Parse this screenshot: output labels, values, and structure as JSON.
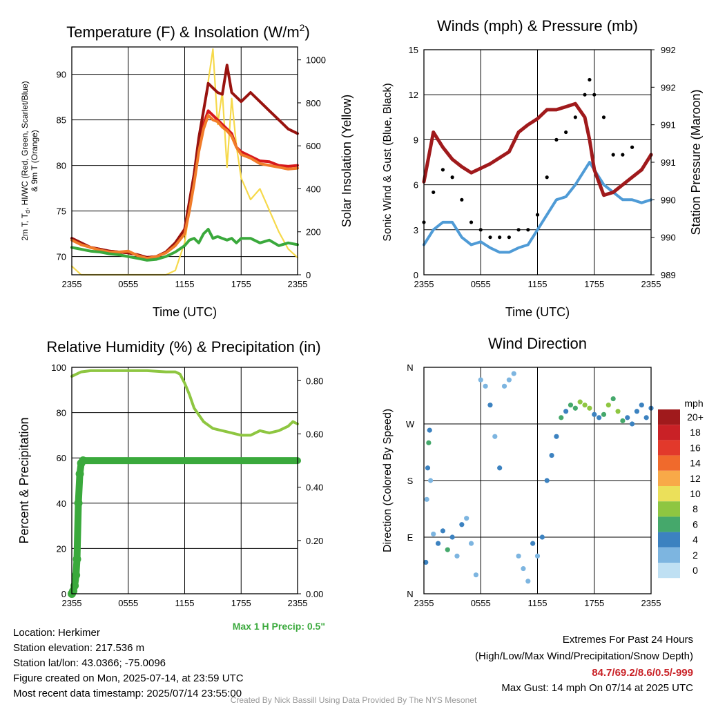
{
  "chart_data": [
    {
      "type": "line",
      "title": "Temperature (F) & Insolation (W/m²)",
      "title_main": "Temperature (F) & Insolation (W/m",
      "title_sup": "2",
      "title_end": ")",
      "xlabel": "Time (UTC)",
      "ylabel_left_1": "2m T, T",
      "ylabel_left_sub": "d",
      "ylabel_left_2": ", HI/WC (Red, Green, Scarlet/Blue)",
      "ylabel_left_line2": "& 9m T (Orange)",
      "ylabel_right": "Solar Insolation (Yellow)",
      "x_ticks": [
        "2355",
        "0555",
        "1155",
        "1755",
        "2355"
      ],
      "ylim_left": [
        68,
        93
      ],
      "y_ticks_left": [
        70,
        75,
        80,
        85,
        90
      ],
      "ylim_right": [
        0,
        1060
      ],
      "y_ticks_right": [
        0,
        200,
        400,
        600,
        800,
        1000
      ],
      "x_hours": [
        0,
        1,
        2,
        3,
        4,
        5,
        6,
        7,
        8,
        9,
        10,
        11,
        12,
        12.5,
        13,
        13.5,
        14,
        14.5,
        15,
        15.5,
        16,
        16.5,
        17,
        17.5,
        18,
        19,
        20,
        21,
        22,
        23,
        24
      ],
      "series": [
        {
          "name": "2m T",
          "color": "#d7191c",
          "values": [
            72,
            71.5,
            71,
            70.8,
            70.6,
            70.5,
            70.4,
            70.2,
            69.9,
            70,
            70.5,
            71.5,
            73,
            76,
            79,
            82,
            84.5,
            86,
            85.5,
            85,
            84.5,
            84,
            83.5,
            82,
            81.5,
            81,
            80.5,
            80.4,
            80,
            79.9,
            80
          ]
        },
        {
          "name": "Heat Index",
          "color": "#99130f",
          "values": [
            72,
            71.5,
            71,
            70.8,
            70.6,
            70.5,
            70.4,
            70.2,
            69.9,
            70,
            70.5,
            71.5,
            73,
            76,
            79,
            83,
            86,
            89,
            88.5,
            88,
            87.8,
            91,
            88,
            87.5,
            87,
            88,
            87,
            86,
            85,
            84,
            83.5
          ]
        },
        {
          "name": "9m T",
          "color": "#f17c2a",
          "values": [
            71.8,
            71.3,
            71,
            70.7,
            70.5,
            70.5,
            70.6,
            70.1,
            69.8,
            70,
            70.4,
            71.2,
            72.5,
            75,
            78,
            81.5,
            84,
            85.5,
            85,
            84.8,
            84.2,
            83.8,
            83.2,
            82,
            81.2,
            80.8,
            80.2,
            80,
            79.8,
            79.6,
            79.7
          ]
        },
        {
          "name": "Td",
          "color": "#3aa93c",
          "values": [
            71,
            70.8,
            70.6,
            70.5,
            70.3,
            70.2,
            70,
            69.8,
            69.6,
            69.7,
            70,
            70.5,
            71.2,
            71.8,
            72,
            71.5,
            72.5,
            73,
            72,
            72.2,
            72,
            71.8,
            72,
            71.5,
            72,
            72,
            71.5,
            71.8,
            71.2,
            71.5,
            71.3
          ]
        },
        {
          "name": "Solar",
          "color": "#f6d94b",
          "axis": "right",
          "values": [
            40,
            0,
            0,
            0,
            0,
            0,
            0,
            0,
            0,
            0,
            0,
            20,
            150,
            300,
            450,
            600,
            750,
            900,
            1050,
            700,
            850,
            500,
            820,
            600,
            450,
            350,
            400,
            300,
            200,
            120,
            80
          ]
        }
      ]
    },
    {
      "type": "line",
      "title": "Winds (mph) & Pressure (mb)",
      "xlabel": "Time (UTC)",
      "ylabel_left": "Sonic Wind & Gust (Blue, Black)",
      "ylabel_right": "Station Pressure (Maroon)",
      "x_ticks": [
        "2355",
        "0555",
        "1155",
        "1755",
        "2355"
      ],
      "ylim_left": [
        0,
        15
      ],
      "y_ticks_left": [
        0,
        3,
        6,
        9,
        12,
        15
      ],
      "y_ticks_right": [
        "989",
        "990",
        "990",
        "991",
        "991",
        "992",
        "992"
      ],
      "x_hours": [
        0,
        1,
        2,
        3,
        4,
        5,
        6,
        7,
        8,
        9,
        10,
        11,
        12,
        13,
        14,
        15,
        16,
        17,
        17.5,
        18,
        19,
        20,
        21,
        22,
        23,
        24
      ],
      "wind": [
        2,
        3,
        3.5,
        3.5,
        2.5,
        2,
        2.2,
        1.8,
        1.5,
        1.5,
        1.8,
        2,
        3,
        4,
        5,
        5.2,
        6,
        7,
        7.5,
        7,
        6,
        5.5,
        5,
        5,
        4.8,
        5
      ],
      "gust": [
        3.5,
        5.5,
        7,
        6.5,
        5,
        3.5,
        3,
        2.5,
        2.5,
        2.5,
        3,
        3,
        4,
        6.5,
        9,
        9.5,
        10.5,
        12,
        13,
        12,
        10.5,
        8,
        8,
        8.5,
        7,
        8
      ],
      "pressure": [
        6.2,
        9.5,
        8.5,
        7.7,
        7.2,
        6.8,
        7.1,
        7.4,
        7.8,
        8.2,
        9.5,
        10,
        10.4,
        11,
        11,
        11.2,
        11.4,
        10.5,
        9,
        7,
        5.3,
        5.5,
        6,
        6.5,
        7,
        8
      ]
    },
    {
      "type": "line",
      "title": "Relative Humidity (%) & Precipitation (in)",
      "ylabel": "Percent & Precipitation",
      "x_ticks": [
        "2355",
        "0555",
        "1155",
        "1755",
        "2355"
      ],
      "ylim_left": [
        0,
        100
      ],
      "y_ticks_left": [
        0,
        20,
        40,
        60,
        80,
        100
      ],
      "ylim_right": [
        0,
        0.85
      ],
      "y_ticks_right": [
        "0.00",
        "0.20",
        "0.40",
        "0.60",
        "0.80"
      ],
      "rh_x": [
        0,
        0.5,
        1,
        2,
        4,
        6,
        8,
        10,
        11,
        11.5,
        12,
        12.5,
        13,
        14,
        15,
        16,
        17,
        18,
        19,
        20,
        21,
        22,
        23,
        23.5,
        24
      ],
      "rh": [
        96,
        97,
        98,
        98.5,
        98.5,
        98.5,
        98.5,
        98,
        98,
        97,
        93,
        88,
        82,
        76,
        73,
        72,
        71,
        70,
        70,
        72,
        71,
        72,
        74,
        76,
        75
      ],
      "precip_x": [
        0,
        0.15,
        0.3,
        0.45,
        0.55,
        0.7,
        0.85,
        1.0,
        1.2,
        1.5,
        2,
        3,
        5,
        8,
        12,
        16,
        20,
        24
      ],
      "precip_in": [
        0,
        0.01,
        0.03,
        0.07,
        0.13,
        0.34,
        0.45,
        0.49,
        0.5,
        0.5,
        0.5,
        0.5,
        0.5,
        0.5,
        0.5,
        0.5,
        0.5,
        0.5
      ],
      "note": "Max 1 H Precip: 0.5\""
    },
    {
      "type": "scatter",
      "title": "Wind Direction",
      "ylabel": "Direction (Colored By Speed)",
      "x_ticks": [
        "2355",
        "0555",
        "1155",
        "1755",
        "2355"
      ],
      "y_ticks": [
        "N",
        "E",
        "S",
        "W",
        "N"
      ],
      "points": [
        [
          0.2,
          50,
          3
        ],
        [
          0.3,
          150,
          1
        ],
        [
          0.4,
          200,
          4
        ],
        [
          0.5,
          240,
          5
        ],
        [
          0.6,
          260,
          3
        ],
        [
          0.7,
          180,
          2
        ],
        [
          1.0,
          95,
          2
        ],
        [
          1.5,
          80,
          4
        ],
        [
          2.0,
          100,
          3
        ],
        [
          2.5,
          70,
          5
        ],
        [
          3.0,
          90,
          4
        ],
        [
          3.5,
          60,
          2
        ],
        [
          4.0,
          110,
          3
        ],
        [
          4.5,
          120,
          2
        ],
        [
          5.0,
          80,
          1
        ],
        [
          5.5,
          30,
          2
        ],
        [
          6.0,
          340,
          2
        ],
        [
          6.5,
          330,
          1
        ],
        [
          7.0,
          300,
          3
        ],
        [
          7.5,
          250,
          1
        ],
        [
          8.0,
          200,
          3
        ],
        [
          8.5,
          330,
          1
        ],
        [
          9.0,
          340,
          2
        ],
        [
          9.5,
          350,
          1
        ],
        [
          10.0,
          60,
          1
        ],
        [
          10.5,
          40,
          2
        ],
        [
          11.0,
          20,
          1
        ],
        [
          11.5,
          80,
          3
        ],
        [
          12.0,
          60,
          2
        ],
        [
          12.5,
          90,
          3
        ],
        [
          13.0,
          180,
          4
        ],
        [
          13.5,
          220,
          4
        ],
        [
          14.0,
          250,
          3
        ],
        [
          14.5,
          280,
          5
        ],
        [
          15.0,
          290,
          4
        ],
        [
          15.5,
          300,
          6
        ],
        [
          16.0,
          295,
          5
        ],
        [
          16.5,
          305,
          7
        ],
        [
          17.0,
          300,
          8
        ],
        [
          17.5,
          295,
          7
        ],
        [
          18.0,
          285,
          4
        ],
        [
          18.5,
          280,
          3
        ],
        [
          19.0,
          285,
          5
        ],
        [
          19.5,
          300,
          8
        ],
        [
          20.0,
          310,
          6
        ],
        [
          20.5,
          290,
          7
        ],
        [
          21.0,
          275,
          5
        ],
        [
          21.5,
          280,
          4
        ],
        [
          22.0,
          270,
          3
        ],
        [
          22.5,
          290,
          4
        ],
        [
          23.0,
          300,
          3
        ],
        [
          23.5,
          280,
          4
        ],
        [
          24.0,
          295,
          3
        ]
      ],
      "legend_title": "mph",
      "legend_labels": [
        "20+",
        "18",
        "16",
        "14",
        "12",
        "10",
        "8",
        "6",
        "4",
        "2",
        "0"
      ],
      "legend_colors": [
        "#a01a1c",
        "#c92126",
        "#e2392b",
        "#f06a2c",
        "#f8a948",
        "#ebe05a",
        "#8ec641",
        "#45a86b",
        "#3c82c0",
        "#7db5e0",
        "#bfe0f3"
      ]
    }
  ],
  "info": {
    "location": "Location: Herkimer",
    "elevation": "Station elevation: 217.536 m",
    "latlon": "Station lat/lon: 43.0366; -75.0096",
    "created": "Figure created on Mon, 2025-07-14, at 23:59 UTC",
    "recent": "Most recent data timestamp: 2025/07/14 23:55:00",
    "extremes_title": "Extremes For Past 24 Hours",
    "extremes_sub": "(High/Low/Max Wind/Precipitation/Snow Depth)",
    "extremes_values": "84.7/69.2/8.6/0.5/-999",
    "max_gust": "Max Gust: 14 mph On 07/14 at 2025 UTC",
    "credit": "Created By Nick Bassill Using Data Provided By The NYS Mesonet"
  },
  "colors": {
    "wind": "#4f9bd6",
    "gust": "#000000",
    "pressure": "#a01a1c",
    "rh": "#8ec641",
    "precip": "#3aa93c",
    "extremes": "#c92126",
    "note": "#3aa93c"
  }
}
